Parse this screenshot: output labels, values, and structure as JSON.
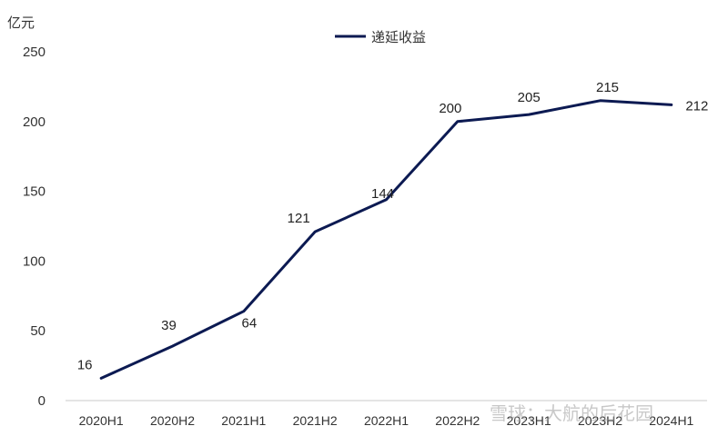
{
  "chart_data": {
    "type": "line",
    "unit_label": "亿元",
    "categories": [
      "2020H1",
      "2020H2",
      "2021H1",
      "2021H2",
      "2022H1",
      "2022H2",
      "2023H1",
      "2023H2",
      "2024H1"
    ],
    "series": [
      {
        "name": "递延收益",
        "values": [
          16,
          39,
          64,
          121,
          144,
          200,
          205,
          215,
          212
        ]
      }
    ],
    "yticks": [
      "0",
      "50",
      "100",
      "150",
      "200",
      "250"
    ],
    "ylim": [
      0,
      250
    ],
    "legend_position": "top-center",
    "grid": false,
    "line_color": "#0c1a52"
  },
  "watermark": "雪球：大航的后花园"
}
